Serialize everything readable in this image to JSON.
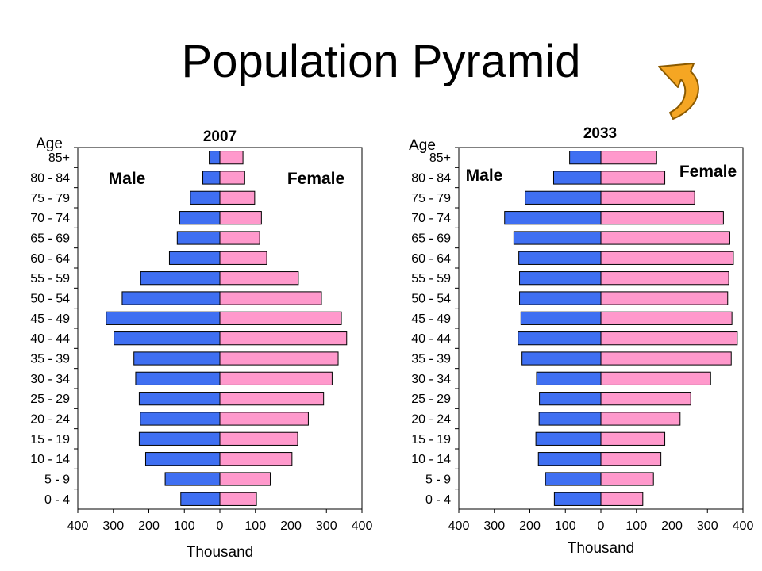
{
  "title": "Population Pyramid",
  "nav": {
    "back_icon": "curved-back-arrow-icon",
    "arrow_fill": "#F5A623",
    "arrow_stroke": "#8B5A00"
  },
  "colors": {
    "male": "#3F6FF2",
    "female": "#FF99CC",
    "outline": "#000000"
  },
  "chart_data": [
    {
      "type": "bar",
      "orientation": "horizontal",
      "title": "2007",
      "ylabel": "Age",
      "xlabel": "Thousand",
      "xlim": [
        -400,
        400
      ],
      "xticks": [
        -400,
        -300,
        -200,
        -100,
        0,
        100,
        200,
        300,
        400
      ],
      "xtick_labels": [
        "400",
        "300",
        "200",
        "100",
        "0",
        "100",
        "200",
        "300",
        "400"
      ],
      "categories": [
        "85+",
        "80 - 84",
        "75 - 79",
        "70 - 74",
        "65 - 69",
        "60 - 64",
        "55 - 59",
        "50 - 54",
        "45 - 49",
        "40 - 44",
        "35 - 39",
        "30 - 34",
        "25 - 29",
        "20 - 24",
        "15 - 19",
        "10 - 14",
        "5 - 9",
        "0 - 4"
      ],
      "series": [
        {
          "name": "Male",
          "values": [
            30,
            48,
            83,
            113,
            120,
            142,
            223,
            275,
            320,
            298,
            242,
            237,
            227,
            224,
            227,
            209,
            154,
            110
          ]
        },
        {
          "name": "Female",
          "values": [
            65,
            70,
            98,
            117,
            112,
            132,
            221,
            286,
            342,
            357,
            333,
            316,
            292,
            249,
            219,
            203,
            142,
            103
          ]
        }
      ],
      "grid": false,
      "legend_placement": "top"
    },
    {
      "type": "bar",
      "orientation": "horizontal",
      "title": "2033",
      "ylabel": "Age",
      "xlabel": "Thousand",
      "xlim": [
        -400,
        400
      ],
      "xticks": [
        -400,
        -300,
        -200,
        -100,
        0,
        100,
        200,
        300,
        400
      ],
      "xtick_labels": [
        "400",
        "300",
        "200",
        "100",
        "0",
        "100",
        "200",
        "300",
        "400"
      ],
      "categories": [
        "85+",
        "80 - 84",
        "75 - 79",
        "70 - 74",
        "65 - 69",
        "60 - 64",
        "55 - 59",
        "50 - 54",
        "45 - 49",
        "40 - 44",
        "35 - 39",
        "30 - 34",
        "25 - 29",
        "20 - 24",
        "15 - 19",
        "10 - 14",
        "5 - 9",
        "0 - 4"
      ],
      "series": [
        {
          "name": "Male",
          "values": [
            88,
            133,
            213,
            271,
            245,
            231,
            229,
            229,
            225,
            233,
            222,
            181,
            173,
            174,
            183,
            176,
            156,
            131
          ]
        },
        {
          "name": "Female",
          "values": [
            157,
            180,
            264,
            345,
            363,
            373,
            360,
            357,
            369,
            384,
            367,
            309,
            253,
            223,
            180,
            169,
            148,
            118
          ]
        }
      ],
      "grid": false,
      "legend_placement": "top"
    }
  ]
}
